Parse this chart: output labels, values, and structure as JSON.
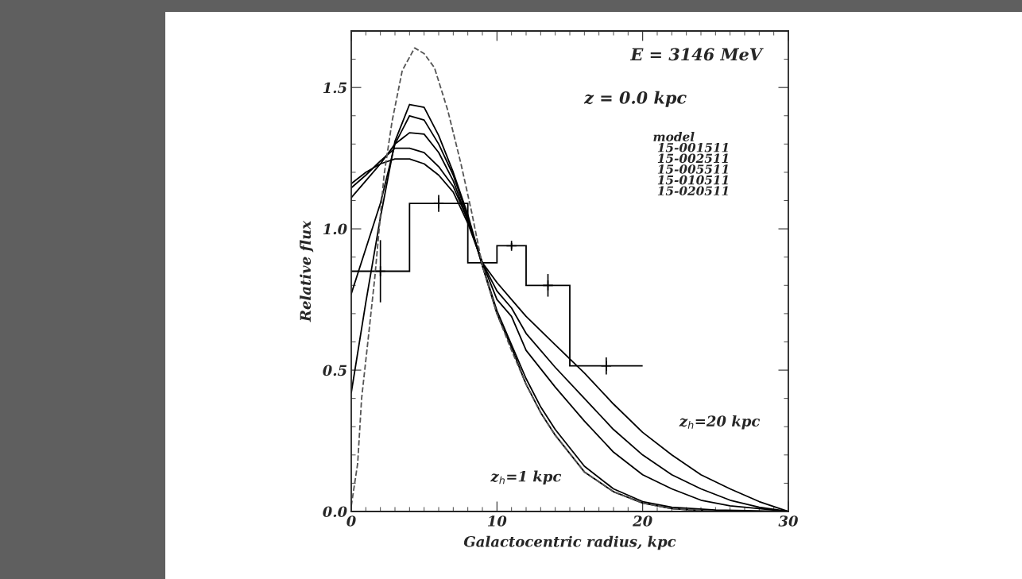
{
  "chart_data": {
    "type": "line",
    "xlabel": "Galactocentric radius, kpc",
    "ylabel": "Relative flux",
    "xlim": [
      0,
      30
    ],
    "ylim": [
      0,
      1.7
    ],
    "xticks": [
      0,
      10,
      20,
      30
    ],
    "yticks": [
      {
        "value": 0,
        "label": "0.0"
      },
      {
        "value": 0.5,
        "label": "0.5"
      },
      {
        "value": 1.0,
        "label": "1.0"
      },
      {
        "value": 1.5,
        "label": "1.5"
      }
    ],
    "grid": false,
    "legend": false,
    "marker": "none",
    "series": [
      {
        "type": "histogram",
        "color": "#000000",
        "bins": [
          0,
          4,
          8,
          10,
          12,
          15,
          20
        ],
        "values": [
          0.85,
          1.09,
          0.88,
          0.94,
          0.8,
          0.515
        ]
      },
      {
        "type": "scatter",
        "color": "#000000",
        "marker": "cross",
        "x": [
          2,
          6,
          11,
          13.5,
          17.5
        ],
        "values": [
          0.85,
          1.09,
          0.94,
          0.8,
          0.515
        ],
        "errors": [
          0.11,
          0.03,
          0.01,
          0.04,
          0.03
        ]
      },
      {
        "color": "#000000",
        "line_style": "solid",
        "x": [
          0,
          1,
          2,
          3,
          4,
          5,
          6,
          7,
          8,
          9,
          10,
          11,
          12,
          13,
          14,
          16,
          18,
          20,
          22,
          25,
          30
        ],
        "values": [
          0.42,
          0.74,
          1.04,
          1.31,
          1.44,
          1.43,
          1.33,
          1.2,
          1.05,
          0.87,
          0.7,
          0.58,
          0.45,
          0.35,
          0.27,
          0.14,
          0.07,
          0.03,
          0.01,
          0,
          0
        ]
      },
      {
        "color": "#000000",
        "line_style": "solid",
        "x": [
          0,
          1,
          2,
          3,
          4,
          5,
          6,
          7,
          8,
          9,
          10,
          11,
          12,
          13,
          14,
          16,
          18,
          20,
          22,
          25,
          30
        ],
        "values": [
          0.77,
          0.93,
          1.09,
          1.3,
          1.4,
          1.385,
          1.3,
          1.19,
          1.04,
          0.87,
          0.71,
          0.59,
          0.47,
          0.37,
          0.29,
          0.16,
          0.08,
          0.035,
          0.015,
          0.005,
          0
        ]
      },
      {
        "color": "#000000",
        "line_style": "solid",
        "x": [
          0,
          1,
          2,
          3,
          4,
          5,
          6,
          7,
          8,
          9,
          10,
          11,
          12,
          14,
          16,
          18,
          20,
          22,
          24,
          26,
          28,
          30
        ],
        "values": [
          1.11,
          1.17,
          1.23,
          1.3,
          1.34,
          1.335,
          1.27,
          1.17,
          1.03,
          0.88,
          0.75,
          0.69,
          0.57,
          0.44,
          0.32,
          0.21,
          0.13,
          0.08,
          0.04,
          0.02,
          0.01,
          0
        ]
      },
      {
        "color": "#000000",
        "line_style": "solid",
        "x": [
          0,
          1,
          2,
          3,
          4,
          5,
          6,
          7,
          8,
          9,
          10,
          11,
          12,
          14,
          16,
          18,
          20,
          22,
          24,
          26,
          28,
          30
        ],
        "values": [
          1.145,
          1.19,
          1.24,
          1.285,
          1.285,
          1.27,
          1.22,
          1.15,
          1.03,
          0.88,
          0.78,
          0.72,
          0.63,
          0.51,
          0.4,
          0.29,
          0.2,
          0.13,
          0.08,
          0.04,
          0.015,
          0
        ]
      },
      {
        "color": "#000000",
        "line_style": "solid",
        "x": [
          0,
          1,
          2,
          3,
          4,
          5,
          6,
          7,
          8,
          9,
          10,
          11,
          12,
          14,
          16,
          18,
          20,
          22,
          24,
          26,
          28,
          30
        ],
        "values": [
          1.16,
          1.2,
          1.23,
          1.247,
          1.247,
          1.23,
          1.19,
          1.13,
          1.02,
          0.88,
          0.81,
          0.75,
          0.69,
          0.59,
          0.49,
          0.38,
          0.28,
          0.2,
          0.13,
          0.08,
          0.035,
          0
        ]
      },
      {
        "color": "#555555",
        "line_style": "dashed",
        "x": [
          0,
          0.44,
          0.71,
          1.16,
          1.62,
          2.25,
          2.8,
          3.5,
          4.35,
          5.0,
          5.71,
          6.62,
          7.53,
          8.26,
          9,
          10,
          11,
          12,
          13,
          14,
          16,
          18,
          20,
          22,
          25,
          30
        ],
        "values": [
          0.02,
          0.17,
          0.4,
          0.61,
          0.83,
          1.19,
          1.38,
          1.56,
          1.64,
          1.62,
          1.57,
          1.42,
          1.23,
          1.06,
          0.87,
          0.7,
          0.57,
          0.45,
          0.35,
          0.27,
          0.14,
          0.07,
          0.03,
          0.01,
          0,
          0
        ]
      }
    ],
    "annotations": [
      "E = 3146 MeV",
      "z = 0.0 kpc",
      "model\n 15-001511\n 15-002511\n 15-005511\n 15-010511\n 15-020511",
      "z$_{h}$=1 kpc",
      "z$_{h}$=20 kpc"
    ]
  }
}
